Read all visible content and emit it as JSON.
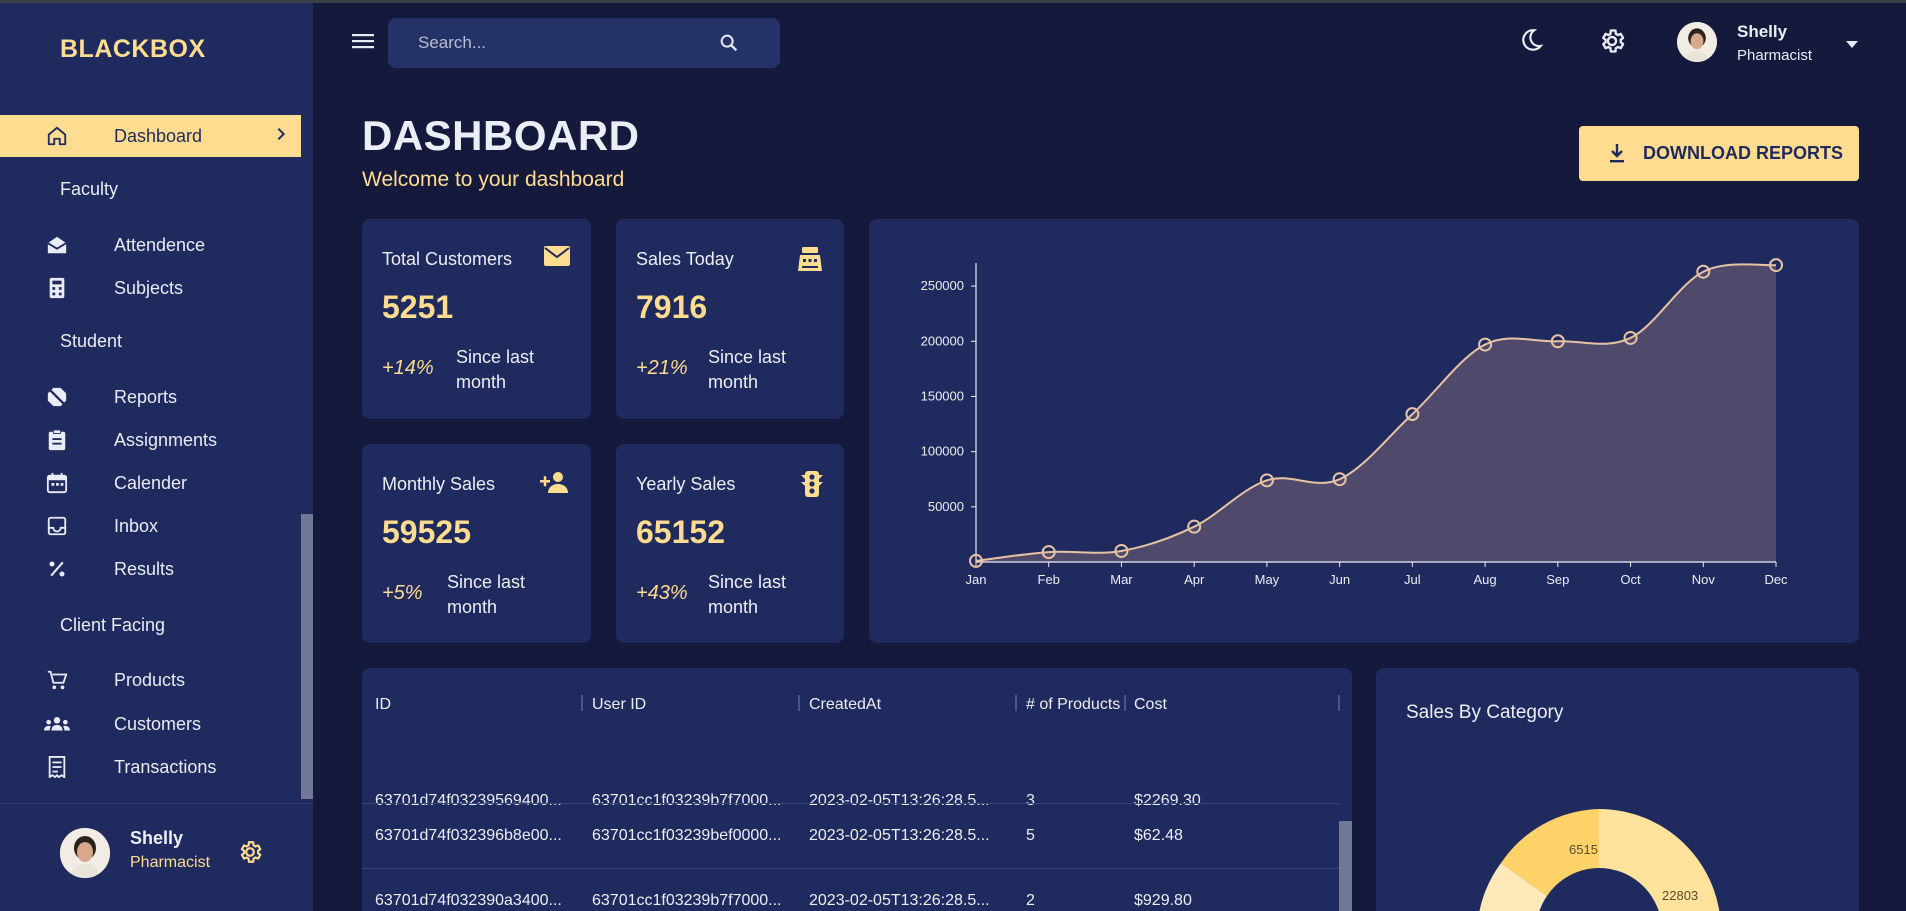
{
  "brand": "BLACKBOX",
  "sidebar": {
    "active": {
      "label": "Dashboard"
    },
    "sections": {
      "faculty": "Faculty",
      "student": "Student",
      "client": "Client Facing"
    },
    "items": {
      "attendence": "Attendence",
      "subjects": "Subjects",
      "reports": "Reports",
      "assignments": "Assignments",
      "calender": "Calender",
      "inbox": "Inbox",
      "results": "Results",
      "products": "Products",
      "customers": "Customers",
      "transactions": "Transactions"
    },
    "user": {
      "name": "Shelly",
      "role": "Pharmacist"
    }
  },
  "header": {
    "search_placeholder": "Search...",
    "user": {
      "name": "Shelly",
      "role": "Pharmacist"
    }
  },
  "page": {
    "title": "DASHBOARD",
    "subtitle": "Welcome to your dashboard",
    "download_label": "DOWNLOAD REPORTS"
  },
  "stats": [
    {
      "title": "Total Customers",
      "value": "5251",
      "pct": "+14%",
      "since": "Since last month",
      "icon": "email-icon"
    },
    {
      "title": "Sales Today",
      "value": "7916",
      "pct": "+21%",
      "since": "Since last month",
      "icon": "point-of-sale-icon"
    },
    {
      "title": "Monthly Sales",
      "value": "59525",
      "pct": "+5%",
      "since": "Since last month",
      "icon": "person-add-icon"
    },
    {
      "title": "Yearly Sales",
      "value": "65152",
      "pct": "+43%",
      "since": "Since last month",
      "icon": "traffic-icon"
    }
  ],
  "chart_data": {
    "type": "area",
    "categories": [
      "Jan",
      "Feb",
      "Mar",
      "Apr",
      "May",
      "Jun",
      "Jul",
      "Aug",
      "Sep",
      "Oct",
      "Nov",
      "Dec"
    ],
    "values": [
      1000,
      9000,
      10000,
      32000,
      74000,
      75000,
      134000,
      197000,
      200000,
      203000,
      263000,
      269000
    ],
    "yticks": [
      50000,
      100000,
      150000,
      200000,
      250000
    ],
    "ylim": [
      0,
      270000
    ],
    "colors": {
      "line": "#e8c3a3",
      "fill": "#4f4a6c"
    }
  },
  "table": {
    "columns": [
      "ID",
      "User ID",
      "CreatedAt",
      "# of Products",
      "Cost"
    ],
    "rows": [
      [
        "63701d74f03239569400...",
        "63701cc1f03239b7f7000...",
        "2023-02-05T13:26:28.5...",
        "3",
        "$2269.30"
      ],
      [
        "63701d74f032396b8e00...",
        "63701cc1f03239bef0000...",
        "2023-02-05T13:26:28.5...",
        "5",
        "$62.48"
      ],
      [
        "63701d74f032390a3400...",
        "63701cc1f03239b7f7000...",
        "2023-02-05T13:26:28.5...",
        "2",
        "$929.80"
      ]
    ]
  },
  "pie": {
    "title": "Sales By Category",
    "labels": [
      "6515",
      "22803"
    ]
  }
}
